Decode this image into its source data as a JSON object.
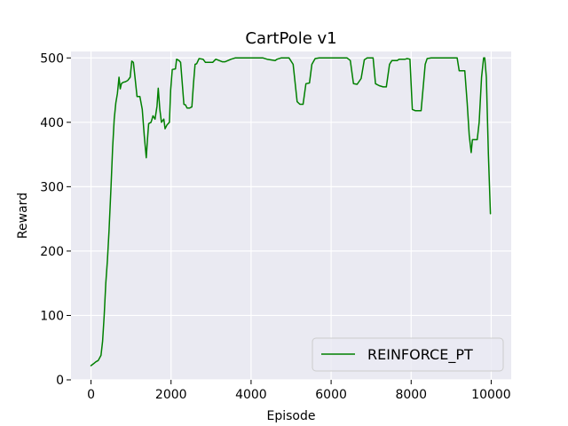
{
  "chart_data": {
    "type": "line",
    "title": "CartPole v1",
    "xlabel": "Episode",
    "ylabel": "Reward",
    "xlim": [
      -500,
      10500
    ],
    "ylim": [
      0,
      510
    ],
    "xticks": [
      0,
      2000,
      4000,
      6000,
      8000,
      10000
    ],
    "yticks": [
      0,
      100,
      200,
      300,
      400,
      500
    ],
    "grid": true,
    "background": "#eaeaf2",
    "legend_position": "bottom-right",
    "series": [
      {
        "name": "REINFORCE_PT",
        "color": "#008000",
        "points": [
          [
            0,
            22
          ],
          [
            60,
            25
          ],
          [
            120,
            28
          ],
          [
            180,
            30
          ],
          [
            250,
            38
          ],
          [
            290,
            60
          ],
          [
            330,
            100
          ],
          [
            370,
            150
          ],
          [
            410,
            185
          ],
          [
            450,
            230
          ],
          [
            500,
            300
          ],
          [
            540,
            360
          ],
          [
            580,
            405
          ],
          [
            620,
            430
          ],
          [
            660,
            445
          ],
          [
            700,
            470
          ],
          [
            730,
            452
          ],
          [
            760,
            460
          ],
          [
            800,
            462
          ],
          [
            860,
            463
          ],
          [
            920,
            465
          ],
          [
            980,
            470
          ],
          [
            1020,
            495
          ],
          [
            1060,
            493
          ],
          [
            1100,
            470
          ],
          [
            1150,
            440
          ],
          [
            1220,
            440
          ],
          [
            1280,
            420
          ],
          [
            1330,
            380
          ],
          [
            1380,
            345
          ],
          [
            1410,
            372
          ],
          [
            1440,
            398
          ],
          [
            1500,
            400
          ],
          [
            1550,
            410
          ],
          [
            1600,
            405
          ],
          [
            1650,
            425
          ],
          [
            1680,
            453
          ],
          [
            1720,
            420
          ],
          [
            1760,
            400
          ],
          [
            1820,
            405
          ],
          [
            1850,
            390
          ],
          [
            1900,
            396
          ],
          [
            1960,
            400
          ],
          [
            1990,
            450
          ],
          [
            2030,
            482
          ],
          [
            2110,
            483
          ],
          [
            2140,
            498
          ],
          [
            2200,
            496
          ],
          [
            2240,
            493
          ],
          [
            2280,
            460
          ],
          [
            2320,
            428
          ],
          [
            2360,
            427
          ],
          [
            2400,
            422
          ],
          [
            2460,
            422
          ],
          [
            2520,
            424
          ],
          [
            2560,
            460
          ],
          [
            2600,
            490
          ],
          [
            2640,
            491
          ],
          [
            2700,
            499
          ],
          [
            2800,
            498
          ],
          [
            2860,
            493
          ],
          [
            3040,
            493
          ],
          [
            3120,
            498
          ],
          [
            3280,
            494
          ],
          [
            3350,
            494
          ],
          [
            3500,
            498
          ],
          [
            3600,
            500
          ],
          [
            4300,
            500
          ],
          [
            4400,
            498
          ],
          [
            4600,
            496
          ],
          [
            4650,
            498
          ],
          [
            4750,
            500
          ],
          [
            4950,
            500
          ],
          [
            5050,
            490
          ],
          [
            5150,
            432
          ],
          [
            5220,
            428
          ],
          [
            5300,
            428
          ],
          [
            5370,
            460
          ],
          [
            5460,
            461
          ],
          [
            5520,
            490
          ],
          [
            5600,
            499
          ],
          [
            5700,
            500
          ],
          [
            6400,
            500
          ],
          [
            6480,
            496
          ],
          [
            6560,
            460
          ],
          [
            6650,
            459
          ],
          [
            6750,
            468
          ],
          [
            6830,
            497
          ],
          [
            6900,
            500
          ],
          [
            7050,
            500
          ],
          [
            7110,
            460
          ],
          [
            7200,
            457
          ],
          [
            7300,
            455
          ],
          [
            7380,
            455
          ],
          [
            7460,
            490
          ],
          [
            7520,
            496
          ],
          [
            7650,
            496
          ],
          [
            7700,
            498
          ],
          [
            7850,
            498
          ],
          [
            7900,
            499
          ],
          [
            7970,
            498
          ],
          [
            8030,
            420
          ],
          [
            8100,
            418
          ],
          [
            8250,
            418
          ],
          [
            8350,
            490
          ],
          [
            8400,
            499
          ],
          [
            8500,
            500
          ],
          [
            9150,
            500
          ],
          [
            9200,
            480
          ],
          [
            9340,
            480
          ],
          [
            9400,
            430
          ],
          [
            9450,
            380
          ],
          [
            9500,
            353
          ],
          [
            9530,
            373
          ],
          [
            9650,
            373
          ],
          [
            9700,
            400
          ],
          [
            9760,
            470
          ],
          [
            9810,
            500
          ],
          [
            9840,
            500
          ],
          [
            9880,
            470
          ],
          [
            9930,
            350
          ],
          [
            9980,
            258
          ]
        ]
      }
    ]
  }
}
